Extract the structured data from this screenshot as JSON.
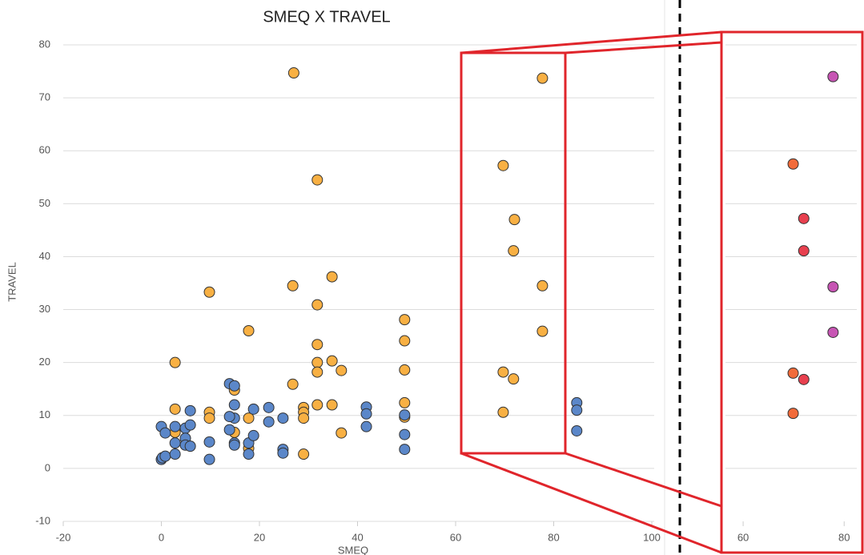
{
  "chart_data": [
    {
      "type": "scatter",
      "title": "SMEQ X TRAVEL",
      "x_label": "SMEQ",
      "y_label": "TRAVEL",
      "xlim": [
        -20,
        100
      ],
      "xticks": [
        -20,
        0,
        20,
        40,
        60,
        80,
        100
      ],
      "ylim": [
        -10,
        80
      ],
      "yticks": [
        -10,
        0,
        10,
        20,
        30,
        40,
        50,
        60,
        70,
        80
      ],
      "grid": true,
      "series": [
        {
          "color": "#f8b043",
          "x": [
            27,
            31.8,
            9.8,
            26.8,
            34.8,
            31.8,
            17.8,
            2.8,
            31.8,
            31.8,
            34.8,
            31.8,
            36.7,
            26.8,
            49.6,
            49.6,
            49.6,
            49.6,
            49.6,
            69.7,
            72,
            71.8,
            77.7,
            77.7,
            69.7,
            71.8,
            69.7,
            77.7,
            14.9,
            14.9,
            9.8,
            9.8,
            2.8,
            2.8,
            17.8,
            17.8,
            29,
            29,
            29,
            31.8,
            34.8,
            29,
            36.7
          ],
          "values": [
            74.7,
            54.5,
            33.3,
            34.5,
            36.2,
            30.9,
            26,
            20,
            23.4,
            20,
            20.3,
            18.2,
            18.5,
            15.9,
            28.1,
            24.1,
            18.6,
            12.4,
            9.7,
            57.2,
            47,
            41.1,
            34.5,
            25.9,
            18.2,
            16.9,
            10.6,
            73.7,
            14.8,
            6.8,
            10.6,
            9.5,
            11.2,
            6.8,
            9.5,
            3.8,
            11.5,
            10.6,
            9.5,
            12,
            12,
            2.7,
            6.7
          ]
        },
        {
          "color": "#5b87c9",
          "x": [
            0,
            0.2,
            0.8,
            0,
            0.8,
            2.8,
            2.8,
            2.8,
            4.9,
            4.9,
            4.9,
            5.9,
            5.9,
            5.9,
            9.8,
            9.8,
            13.9,
            14.9,
            14.9,
            14.9,
            13.9,
            13.9,
            14.9,
            14.9,
            17.8,
            17.8,
            18.8,
            18.8,
            21.9,
            21.9,
            24.8,
            24.8,
            24.8,
            41.8,
            41.8,
            41.8,
            49.6,
            49.6,
            49.6,
            84.7,
            84.7,
            84.7
          ],
          "values": [
            1.7,
            2,
            2.3,
            7.9,
            6.7,
            7.9,
            4.8,
            2.7,
            7.6,
            5.7,
            4.4,
            8.2,
            10.9,
            4.2,
            5,
            1.7,
            16,
            15.6,
            12,
            9.5,
            9.8,
            7.3,
            4.8,
            4.4,
            4.8,
            2.7,
            11.2,
            6.2,
            11.5,
            8.8,
            9.5,
            3.6,
            2.9,
            11.6,
            10.3,
            7.9,
            10.1,
            6.4,
            3.6,
            12.4,
            11,
            7.1
          ]
        }
      ]
    },
    {
      "type": "scatter",
      "xlim": [
        56.5,
        82.5
      ],
      "xticks": [
        60,
        80
      ],
      "ylim": [
        -10,
        80
      ],
      "yticks": [
        0,
        10,
        20,
        30,
        40,
        50,
        60,
        70,
        80
      ],
      "grid": true,
      "series": [
        {
          "color": "#f26b3a",
          "x": [
            69.9,
            69.9,
            69.9
          ],
          "values": [
            57.5,
            18,
            10.4
          ]
        },
        {
          "color": "#e8404f",
          "x": [
            72,
            72,
            72
          ],
          "values": [
            47.2,
            41.1,
            16.8
          ]
        },
        {
          "color": "#c755b4",
          "x": [
            77.8,
            77.8,
            77.8
          ],
          "values": [
            74,
            34.3,
            25.7
          ]
        }
      ]
    }
  ]
}
